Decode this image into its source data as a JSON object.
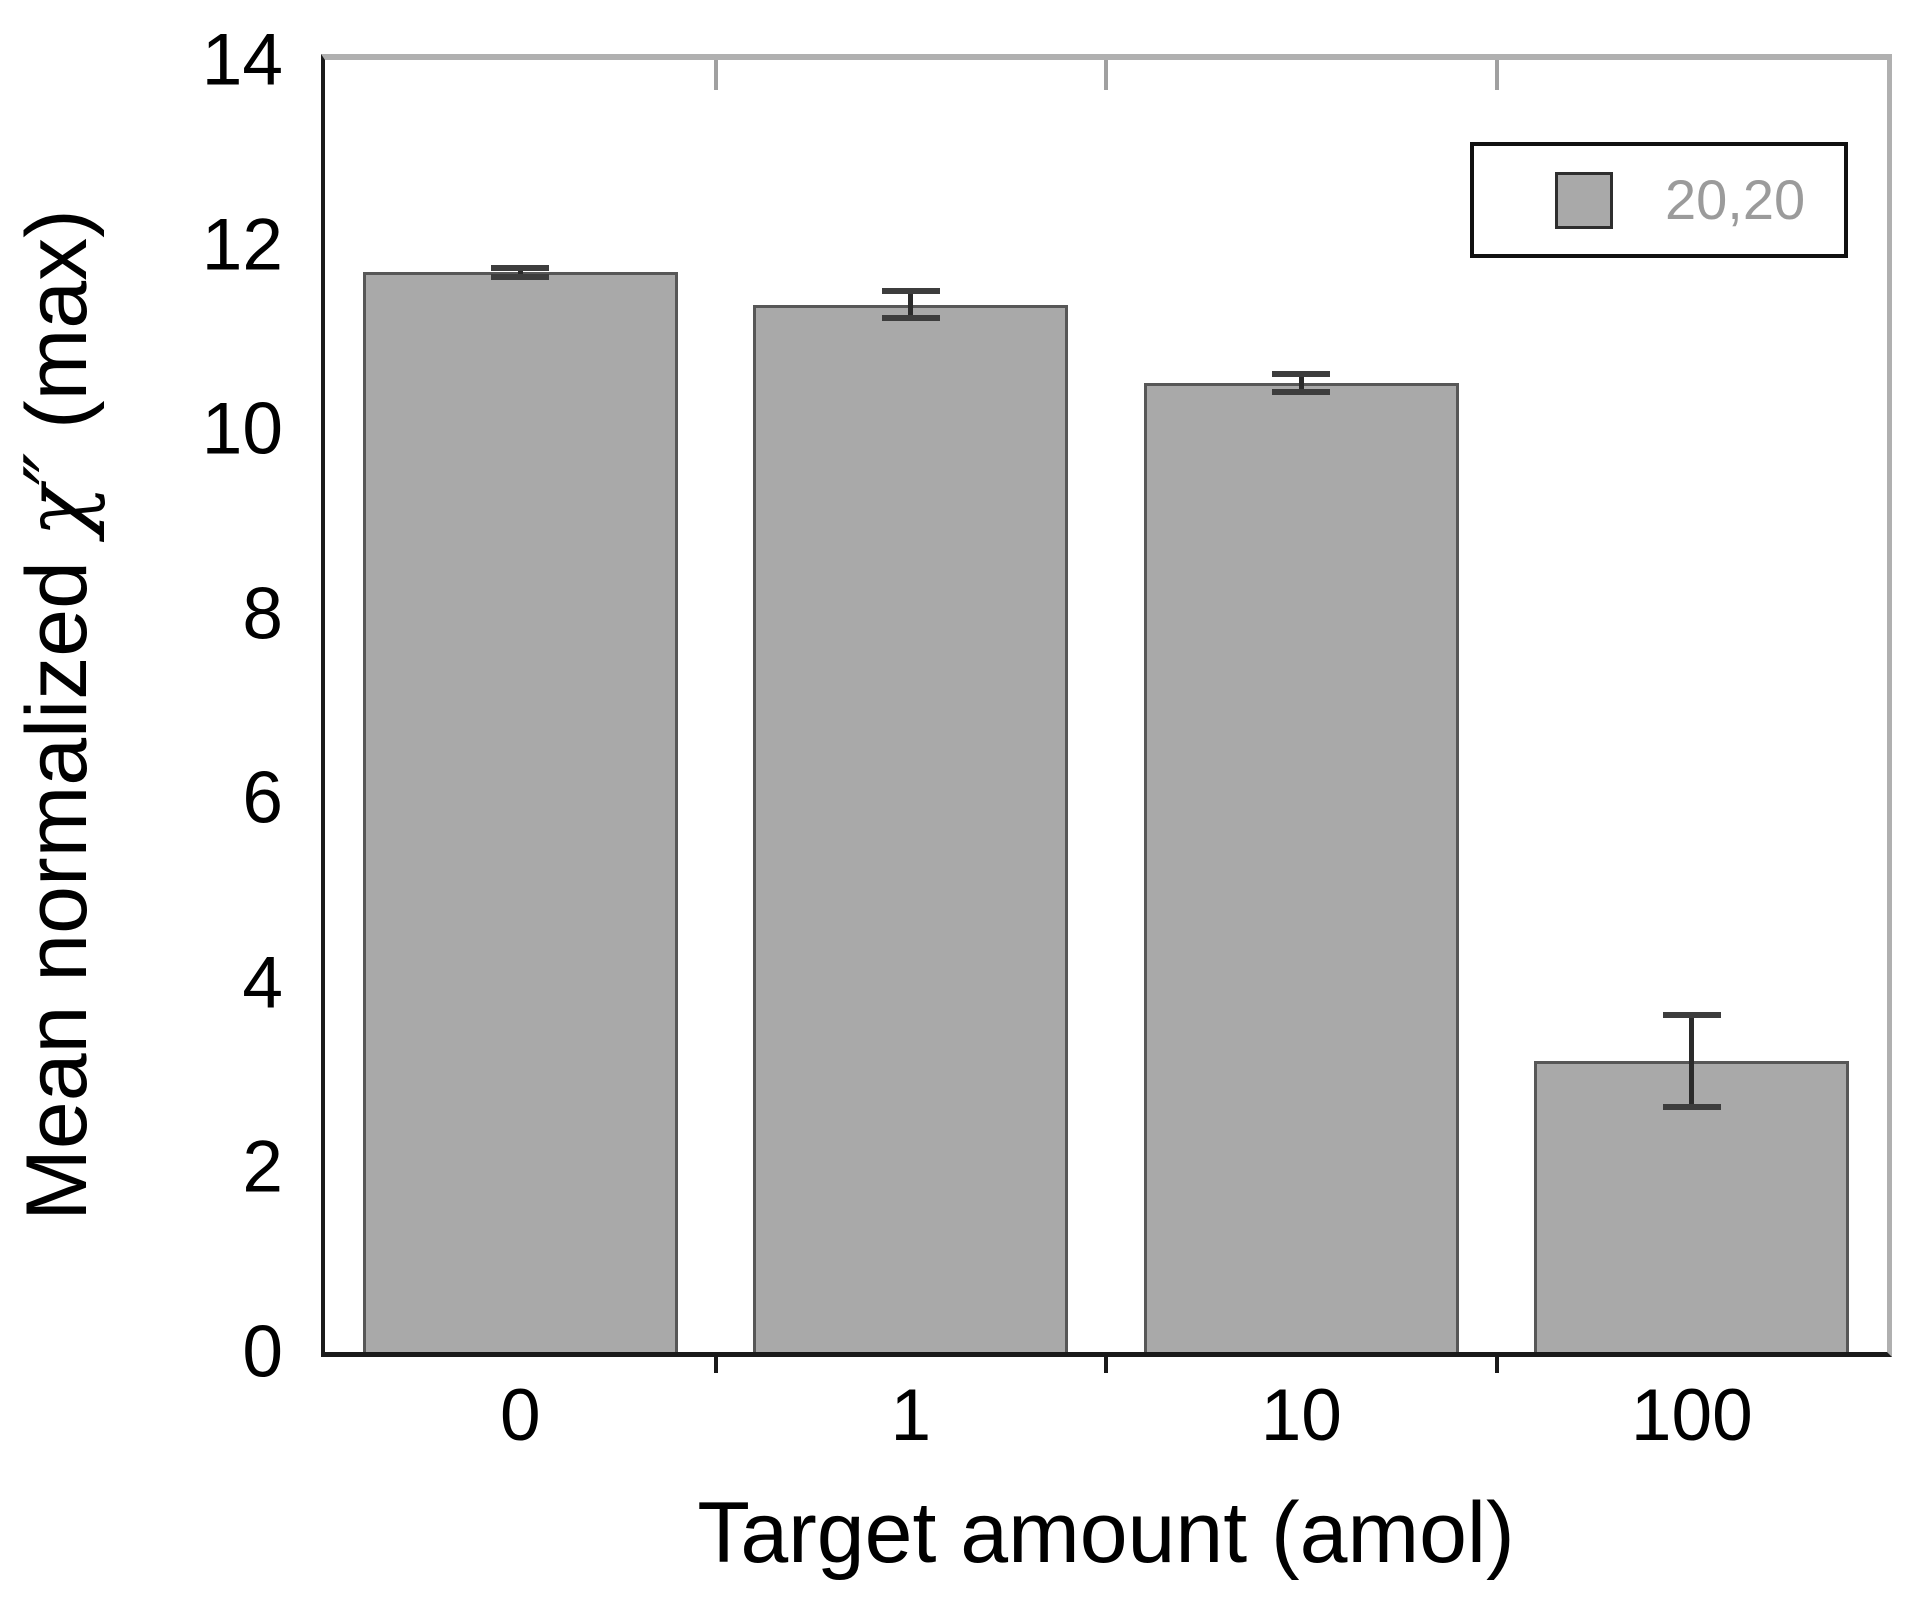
{
  "figure": {
    "background": "#ffffff"
  },
  "labels": {
    "y_prefix": "Mean normalized ",
    "y_chi": "χ″",
    "y_suffix": " (max)",
    "x_title": "Target amount (amol)"
  },
  "legend": {
    "label": "20,20",
    "position": "top-right"
  },
  "colors": {
    "bar_fill": "#a9a9a9",
    "bar_edge": "#575757",
    "axis": "#1a1a1a",
    "frame": "#b0b0b0",
    "error_bar": "#2b2b2b",
    "error_cap": "#3d3d3d",
    "legend_text": "#9b9b9b"
  },
  "chart_data": {
    "type": "bar",
    "title": "",
    "xlabel": "Target amount (amol)",
    "ylabel": "Mean normalized χ″ (max)",
    "categories": [
      "0",
      "1",
      "10",
      "100"
    ],
    "series": [
      {
        "name": "20,20",
        "values": [
          11.7,
          11.35,
          10.5,
          3.15
        ],
        "errors": [
          0.05,
          0.15,
          0.1,
          0.5
        ]
      }
    ],
    "ylim": [
      0,
      14
    ],
    "yticks": [
      0,
      2,
      4,
      6,
      8,
      10,
      12,
      14
    ],
    "grid": false,
    "legend_position": "top-right",
    "bar_color": "#a9a9a9"
  }
}
